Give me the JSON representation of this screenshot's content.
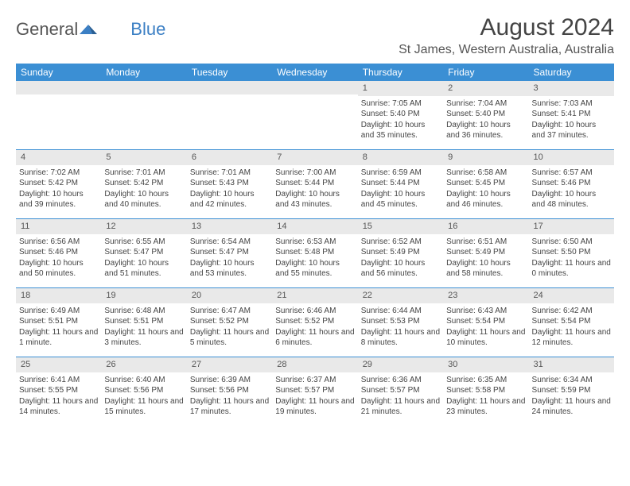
{
  "brand": {
    "part1": "General",
    "part2": "Blue"
  },
  "colors": {
    "accent": "#3b8fd4",
    "header_text": "#ffffff",
    "daynum_bg": "#e9e9e9",
    "text": "#444444",
    "border": "#3b8fd4"
  },
  "title": "August 2024",
  "location": "St James, Western Australia, Australia",
  "day_names": [
    "Sunday",
    "Monday",
    "Tuesday",
    "Wednesday",
    "Thursday",
    "Friday",
    "Saturday"
  ],
  "weeks": [
    [
      {
        "day": "",
        "sunrise": "",
        "sunset": "",
        "daylight": ""
      },
      {
        "day": "",
        "sunrise": "",
        "sunset": "",
        "daylight": ""
      },
      {
        "day": "",
        "sunrise": "",
        "sunset": "",
        "daylight": ""
      },
      {
        "day": "",
        "sunrise": "",
        "sunset": "",
        "daylight": ""
      },
      {
        "day": "1",
        "sunrise": "Sunrise: 7:05 AM",
        "sunset": "Sunset: 5:40 PM",
        "daylight": "Daylight: 10 hours and 35 minutes."
      },
      {
        "day": "2",
        "sunrise": "Sunrise: 7:04 AM",
        "sunset": "Sunset: 5:40 PM",
        "daylight": "Daylight: 10 hours and 36 minutes."
      },
      {
        "day": "3",
        "sunrise": "Sunrise: 7:03 AM",
        "sunset": "Sunset: 5:41 PM",
        "daylight": "Daylight: 10 hours and 37 minutes."
      }
    ],
    [
      {
        "day": "4",
        "sunrise": "Sunrise: 7:02 AM",
        "sunset": "Sunset: 5:42 PM",
        "daylight": "Daylight: 10 hours and 39 minutes."
      },
      {
        "day": "5",
        "sunrise": "Sunrise: 7:01 AM",
        "sunset": "Sunset: 5:42 PM",
        "daylight": "Daylight: 10 hours and 40 minutes."
      },
      {
        "day": "6",
        "sunrise": "Sunrise: 7:01 AM",
        "sunset": "Sunset: 5:43 PM",
        "daylight": "Daylight: 10 hours and 42 minutes."
      },
      {
        "day": "7",
        "sunrise": "Sunrise: 7:00 AM",
        "sunset": "Sunset: 5:44 PM",
        "daylight": "Daylight: 10 hours and 43 minutes."
      },
      {
        "day": "8",
        "sunrise": "Sunrise: 6:59 AM",
        "sunset": "Sunset: 5:44 PM",
        "daylight": "Daylight: 10 hours and 45 minutes."
      },
      {
        "day": "9",
        "sunrise": "Sunrise: 6:58 AM",
        "sunset": "Sunset: 5:45 PM",
        "daylight": "Daylight: 10 hours and 46 minutes."
      },
      {
        "day": "10",
        "sunrise": "Sunrise: 6:57 AM",
        "sunset": "Sunset: 5:46 PM",
        "daylight": "Daylight: 10 hours and 48 minutes."
      }
    ],
    [
      {
        "day": "11",
        "sunrise": "Sunrise: 6:56 AM",
        "sunset": "Sunset: 5:46 PM",
        "daylight": "Daylight: 10 hours and 50 minutes."
      },
      {
        "day": "12",
        "sunrise": "Sunrise: 6:55 AM",
        "sunset": "Sunset: 5:47 PM",
        "daylight": "Daylight: 10 hours and 51 minutes."
      },
      {
        "day": "13",
        "sunrise": "Sunrise: 6:54 AM",
        "sunset": "Sunset: 5:47 PM",
        "daylight": "Daylight: 10 hours and 53 minutes."
      },
      {
        "day": "14",
        "sunrise": "Sunrise: 6:53 AM",
        "sunset": "Sunset: 5:48 PM",
        "daylight": "Daylight: 10 hours and 55 minutes."
      },
      {
        "day": "15",
        "sunrise": "Sunrise: 6:52 AM",
        "sunset": "Sunset: 5:49 PM",
        "daylight": "Daylight: 10 hours and 56 minutes."
      },
      {
        "day": "16",
        "sunrise": "Sunrise: 6:51 AM",
        "sunset": "Sunset: 5:49 PM",
        "daylight": "Daylight: 10 hours and 58 minutes."
      },
      {
        "day": "17",
        "sunrise": "Sunrise: 6:50 AM",
        "sunset": "Sunset: 5:50 PM",
        "daylight": "Daylight: 11 hours and 0 minutes."
      }
    ],
    [
      {
        "day": "18",
        "sunrise": "Sunrise: 6:49 AM",
        "sunset": "Sunset: 5:51 PM",
        "daylight": "Daylight: 11 hours and 1 minute."
      },
      {
        "day": "19",
        "sunrise": "Sunrise: 6:48 AM",
        "sunset": "Sunset: 5:51 PM",
        "daylight": "Daylight: 11 hours and 3 minutes."
      },
      {
        "day": "20",
        "sunrise": "Sunrise: 6:47 AM",
        "sunset": "Sunset: 5:52 PM",
        "daylight": "Daylight: 11 hours and 5 minutes."
      },
      {
        "day": "21",
        "sunrise": "Sunrise: 6:46 AM",
        "sunset": "Sunset: 5:52 PM",
        "daylight": "Daylight: 11 hours and 6 minutes."
      },
      {
        "day": "22",
        "sunrise": "Sunrise: 6:44 AM",
        "sunset": "Sunset: 5:53 PM",
        "daylight": "Daylight: 11 hours and 8 minutes."
      },
      {
        "day": "23",
        "sunrise": "Sunrise: 6:43 AM",
        "sunset": "Sunset: 5:54 PM",
        "daylight": "Daylight: 11 hours and 10 minutes."
      },
      {
        "day": "24",
        "sunrise": "Sunrise: 6:42 AM",
        "sunset": "Sunset: 5:54 PM",
        "daylight": "Daylight: 11 hours and 12 minutes."
      }
    ],
    [
      {
        "day": "25",
        "sunrise": "Sunrise: 6:41 AM",
        "sunset": "Sunset: 5:55 PM",
        "daylight": "Daylight: 11 hours and 14 minutes."
      },
      {
        "day": "26",
        "sunrise": "Sunrise: 6:40 AM",
        "sunset": "Sunset: 5:56 PM",
        "daylight": "Daylight: 11 hours and 15 minutes."
      },
      {
        "day": "27",
        "sunrise": "Sunrise: 6:39 AM",
        "sunset": "Sunset: 5:56 PM",
        "daylight": "Daylight: 11 hours and 17 minutes."
      },
      {
        "day": "28",
        "sunrise": "Sunrise: 6:37 AM",
        "sunset": "Sunset: 5:57 PM",
        "daylight": "Daylight: 11 hours and 19 minutes."
      },
      {
        "day": "29",
        "sunrise": "Sunrise: 6:36 AM",
        "sunset": "Sunset: 5:57 PM",
        "daylight": "Daylight: 11 hours and 21 minutes."
      },
      {
        "day": "30",
        "sunrise": "Sunrise: 6:35 AM",
        "sunset": "Sunset: 5:58 PM",
        "daylight": "Daylight: 11 hours and 23 minutes."
      },
      {
        "day": "31",
        "sunrise": "Sunrise: 6:34 AM",
        "sunset": "Sunset: 5:59 PM",
        "daylight": "Daylight: 11 hours and 24 minutes."
      }
    ]
  ]
}
